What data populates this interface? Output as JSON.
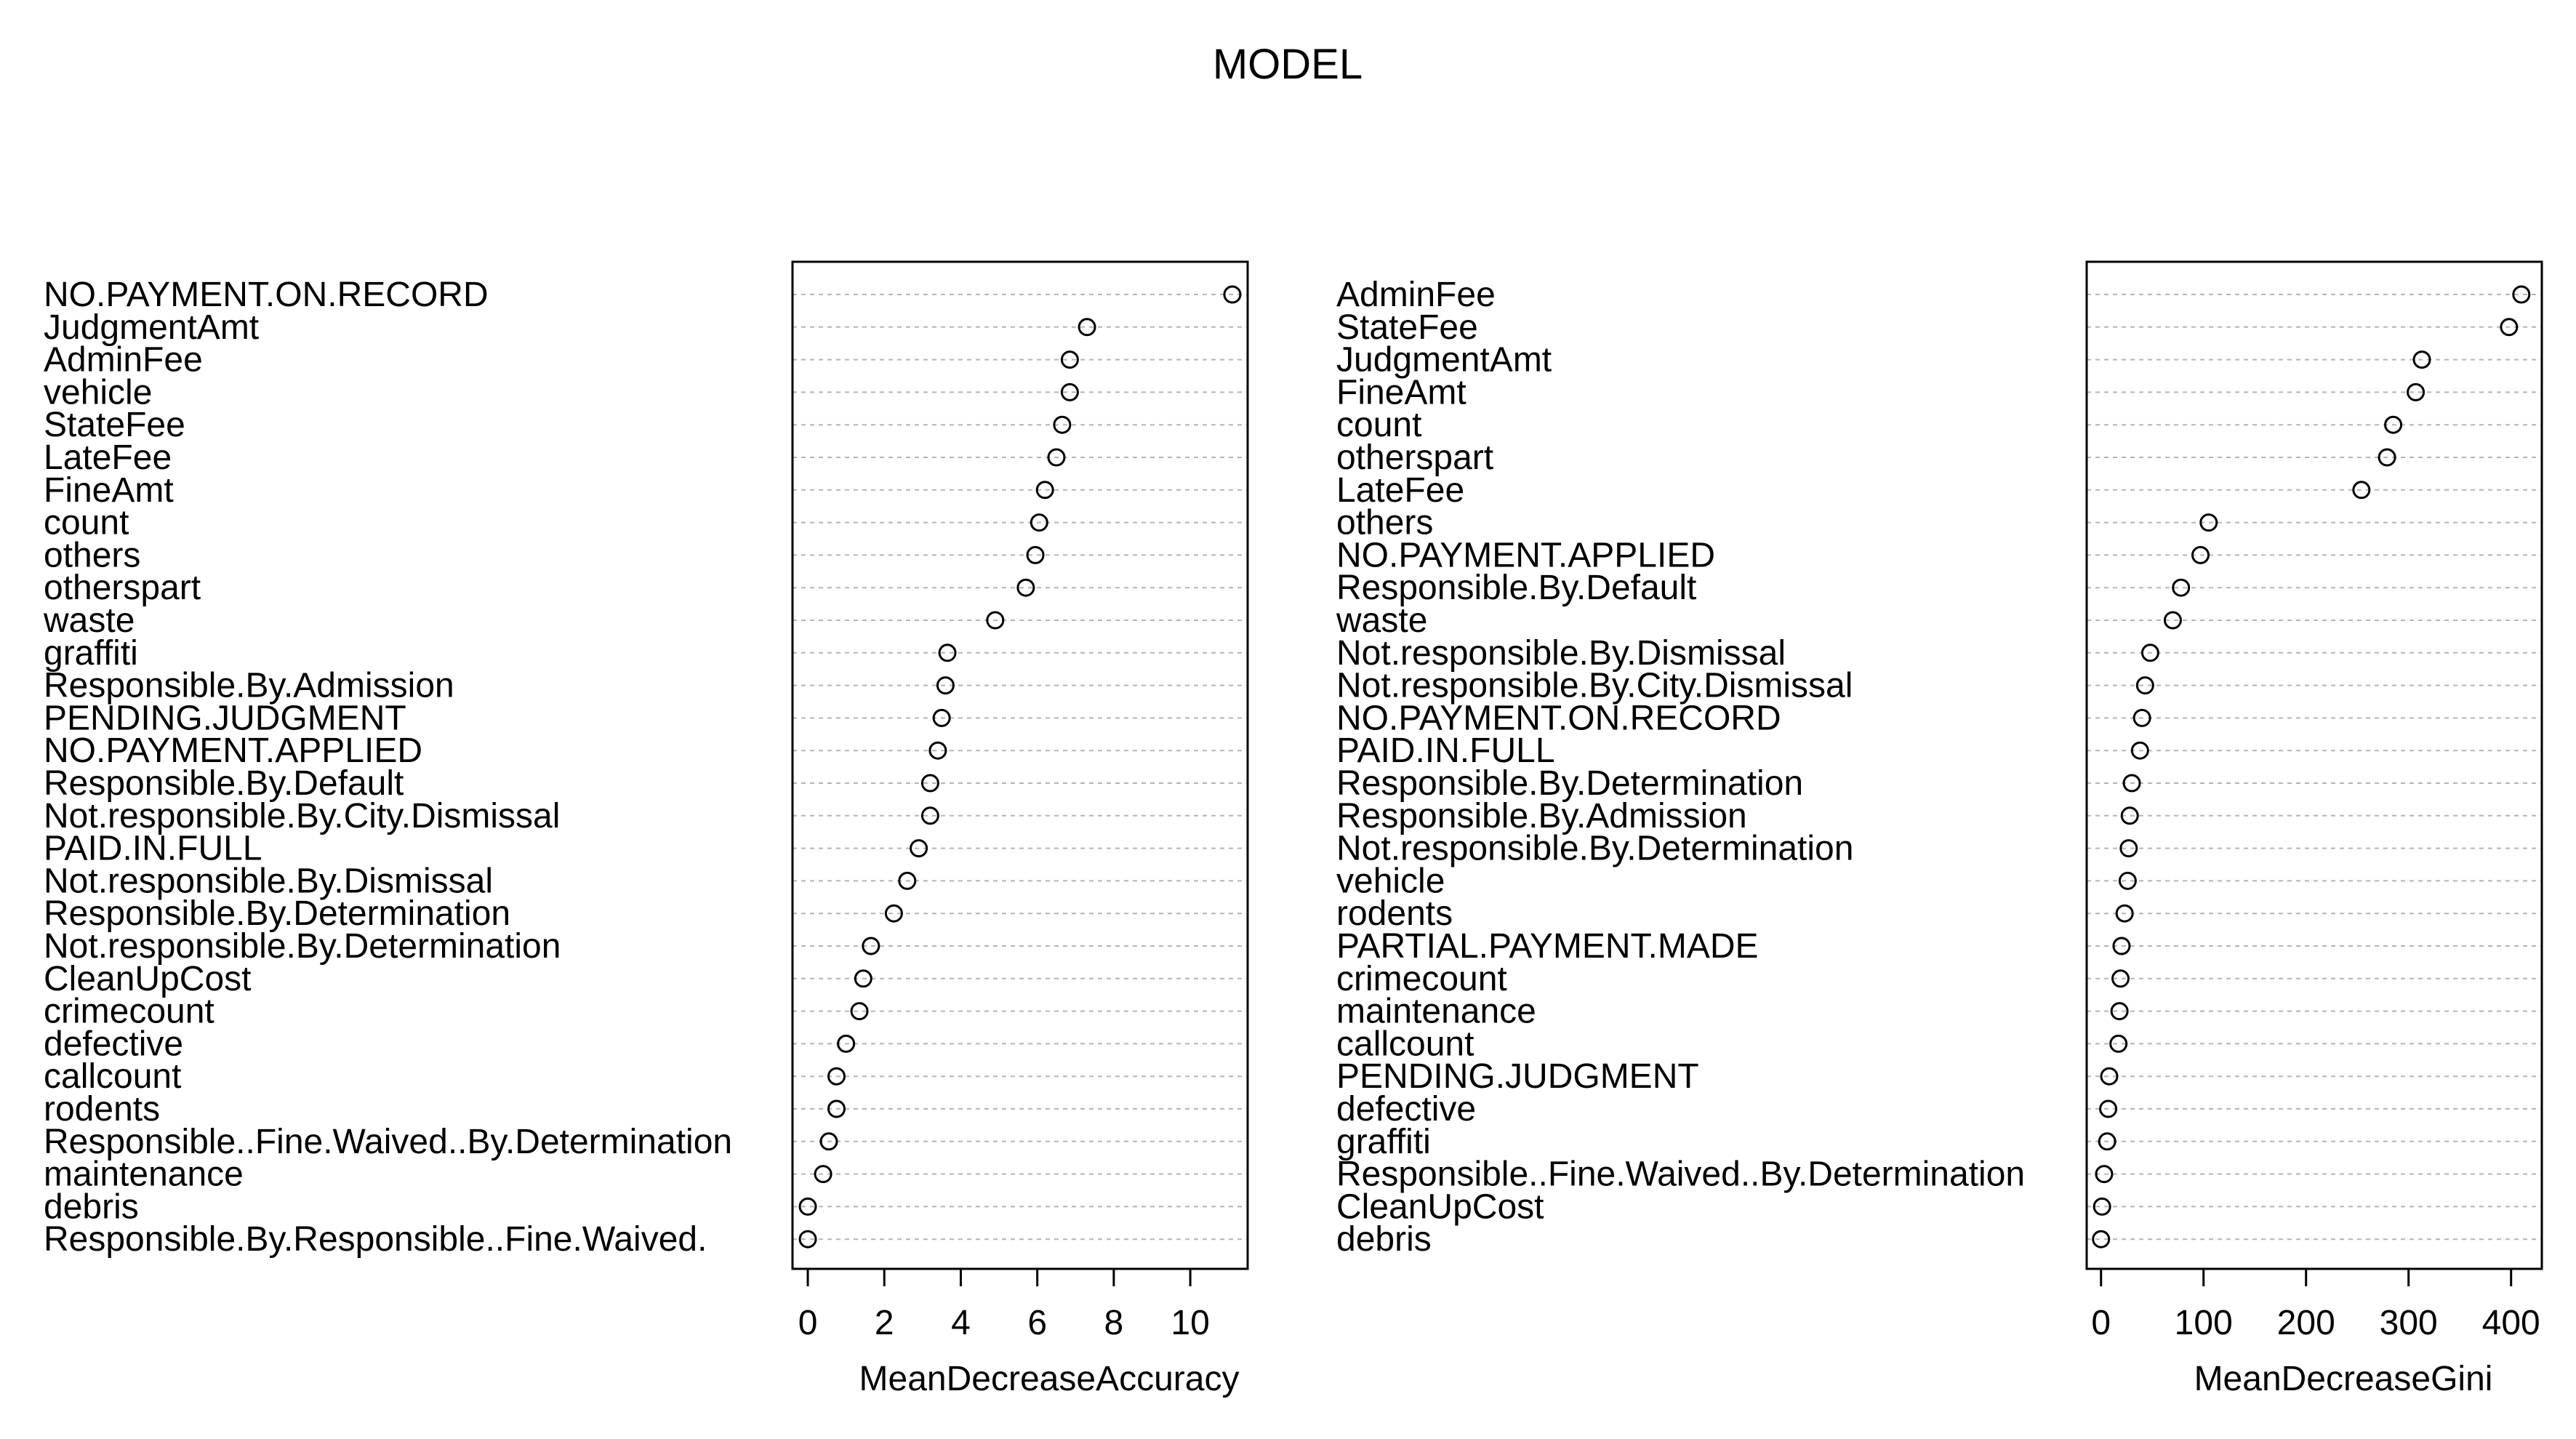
{
  "title": "MODEL",
  "chart_data": [
    {
      "type": "scatter",
      "xlabel": "MeanDecreaseAccuracy",
      "xlim": [
        -0.4,
        11.5
      ],
      "xticks": [
        0,
        2,
        4,
        6,
        8,
        10
      ],
      "grid": true,
      "points": [
        {
          "label": "NO.PAYMENT.ON.RECORD",
          "value": 11.1
        },
        {
          "label": "JudgmentAmt",
          "value": 7.3
        },
        {
          "label": "AdminFee",
          "value": 6.85
        },
        {
          "label": "vehicle",
          "value": 6.85
        },
        {
          "label": "StateFee",
          "value": 6.65
        },
        {
          "label": "LateFee",
          "value": 6.5
        },
        {
          "label": "FineAmt",
          "value": 6.2
        },
        {
          "label": "count",
          "value": 6.05
        },
        {
          "label": "others",
          "value": 5.95
        },
        {
          "label": "otherspart",
          "value": 5.7
        },
        {
          "label": "waste",
          "value": 4.9
        },
        {
          "label": "graffiti",
          "value": 3.65
        },
        {
          "label": "Responsible.By.Admission",
          "value": 3.6
        },
        {
          "label": "PENDING.JUDGMENT",
          "value": 3.5
        },
        {
          "label": "NO.PAYMENT.APPLIED",
          "value": 3.4
        },
        {
          "label": "Responsible.By.Default",
          "value": 3.2
        },
        {
          "label": "Not.responsible.By.City.Dismissal",
          "value": 3.2
        },
        {
          "label": "PAID.IN.FULL",
          "value": 2.9
        },
        {
          "label": "Not.responsible.By.Dismissal",
          "value": 2.6
        },
        {
          "label": "Responsible.By.Determination",
          "value": 2.25
        },
        {
          "label": "Not.responsible.By.Determination",
          "value": 1.65
        },
        {
          "label": "CleanUpCost",
          "value": 1.45
        },
        {
          "label": "crimecount",
          "value": 1.35
        },
        {
          "label": "defective",
          "value": 1.0
        },
        {
          "label": "callcount",
          "value": 0.75
        },
        {
          "label": "rodents",
          "value": 0.75
        },
        {
          "label": "Responsible..Fine.Waived..By.Determination",
          "value": 0.55
        },
        {
          "label": "maintenance",
          "value": 0.4
        },
        {
          "label": "debris",
          "value": 0.0
        },
        {
          "label": "Responsible.By.Responsible..Fine.Waived.",
          "value": 0.0
        }
      ]
    },
    {
      "type": "scatter",
      "xlabel": "MeanDecreaseGini",
      "xlim": [
        -14,
        430
      ],
      "xticks": [
        0,
        100,
        200,
        300,
        400
      ],
      "grid": true,
      "points": [
        {
          "label": "AdminFee",
          "value": 410
        },
        {
          "label": "StateFee",
          "value": 398
        },
        {
          "label": "JudgmentAmt",
          "value": 313
        },
        {
          "label": "FineAmt",
          "value": 307
        },
        {
          "label": "count",
          "value": 285
        },
        {
          "label": "otherspart",
          "value": 279
        },
        {
          "label": "LateFee",
          "value": 254
        },
        {
          "label": "others",
          "value": 105
        },
        {
          "label": "NO.PAYMENT.APPLIED",
          "value": 97
        },
        {
          "label": "Responsible.By.Default",
          "value": 78
        },
        {
          "label": "waste",
          "value": 70
        },
        {
          "label": "Not.responsible.By.Dismissal",
          "value": 48
        },
        {
          "label": "Not.responsible.By.City.Dismissal",
          "value": 43
        },
        {
          "label": "NO.PAYMENT.ON.RECORD",
          "value": 40
        },
        {
          "label": "PAID.IN.FULL",
          "value": 38
        },
        {
          "label": "Responsible.By.Determination",
          "value": 30
        },
        {
          "label": "Responsible.By.Admission",
          "value": 28
        },
        {
          "label": "Not.responsible.By.Determination",
          "value": 27
        },
        {
          "label": "vehicle",
          "value": 26
        },
        {
          "label": "rodents",
          "value": 23
        },
        {
          "label": "PARTIAL.PAYMENT.MADE",
          "value": 20
        },
        {
          "label": "crimecount",
          "value": 19
        },
        {
          "label": "maintenance",
          "value": 18
        },
        {
          "label": "callcount",
          "value": 17
        },
        {
          "label": "PENDING.JUDGMENT",
          "value": 8
        },
        {
          "label": "defective",
          "value": 7
        },
        {
          "label": "graffiti",
          "value": 6
        },
        {
          "label": "Responsible..Fine.Waived..By.Determination",
          "value": 3
        },
        {
          "label": "CleanUpCost",
          "value": 1
        },
        {
          "label": "debris",
          "value": 0
        }
      ]
    }
  ]
}
